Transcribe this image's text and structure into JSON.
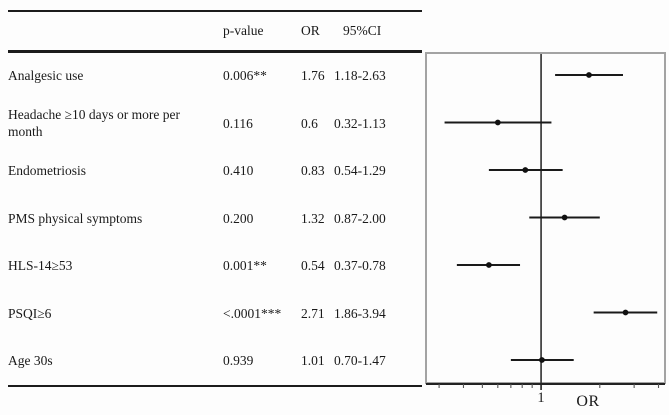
{
  "table": {
    "headers": {
      "p_value": "p-value",
      "or": "OR",
      "ci": "95%CI"
    },
    "rows": [
      {
        "label": "Analgesic use",
        "p": "0.006**",
        "or": "1.76",
        "ci": "1.18-2.63"
      },
      {
        "label": "Headache ≥10 days or more per month",
        "p": "0.116",
        "or": "0.6",
        "ci": "0.32-1.13"
      },
      {
        "label": "Endometriosis",
        "p": "0.410",
        "or": "0.83",
        "ci": "0.54-1.29"
      },
      {
        "label": "PMS physical symptoms",
        "p": "0.200",
        "or": "1.32",
        "ci": "0.87-2.00"
      },
      {
        "label": "HLS-14≥53",
        "p": "0.001**",
        "or": "0.54",
        "ci": "0.37-0.78"
      },
      {
        "label": "PSQI≥6",
        "p": "<.0001***",
        "or": "2.71",
        "ci": "1.86-3.94"
      },
      {
        "label": "Age 30s",
        "p": "0.939",
        "or": "1.01",
        "ci": "0.70-1.47"
      }
    ]
  },
  "chart_data": {
    "type": "scatter",
    "subtype": "forest-plot",
    "xlabel": "OR",
    "x_scale": "log",
    "x_range": [
      0.254,
      4.37
    ],
    "refline_x": 1,
    "ref_tick_label": "1",
    "minor_ticks": [
      0.3,
      0.4,
      0.5,
      0.6,
      0.7,
      0.8,
      0.9,
      2,
      3,
      4
    ],
    "labeled_ticks": [
      1
    ],
    "grid": false,
    "legend": "none",
    "series": [
      {
        "name": "OR with 95% CI",
        "points": [
          {
            "label": "Analgesic use",
            "or": 1.76,
            "ci_low": 1.18,
            "ci_high": 2.63
          },
          {
            "label": "Headache ≥10 days or more per month",
            "or": 0.6,
            "ci_low": 0.32,
            "ci_high": 1.13
          },
          {
            "label": "Endometriosis",
            "or": 0.83,
            "ci_low": 0.54,
            "ci_high": 1.29
          },
          {
            "label": "PMS physical symptoms",
            "or": 1.32,
            "ci_low": 0.87,
            "ci_high": 2.0
          },
          {
            "label": "HLS-14≥53",
            "or": 0.54,
            "ci_low": 0.37,
            "ci_high": 0.78
          },
          {
            "label": "PSQI≥6",
            "or": 2.71,
            "ci_low": 1.86,
            "ci_high": 3.94
          },
          {
            "label": "Age 30s",
            "or": 1.01,
            "ci_low": 0.7,
            "ci_high": 1.47
          }
        ]
      }
    ],
    "colors": {
      "marker": "#111111",
      "ci_line": "#1a1a1a",
      "refline": "#3a3a3a",
      "axis": "#222222",
      "plot_border": "#a3a3a3"
    }
  }
}
